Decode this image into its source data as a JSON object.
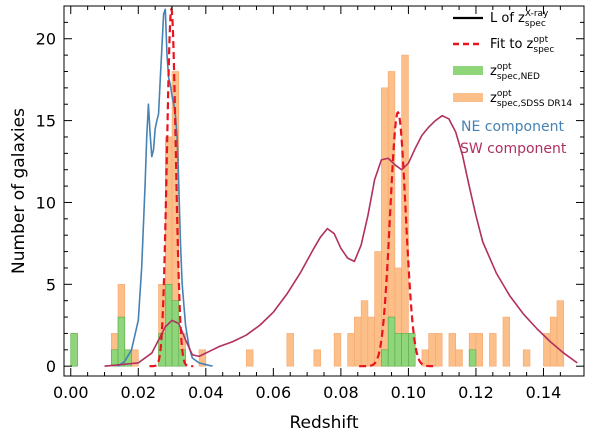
{
  "chart_data": {
    "type": "bar",
    "title": "",
    "xlabel": "Redshift",
    "ylabel": "Number of galaxies",
    "xlim": [
      -0.002,
      0.152
    ],
    "ylim": [
      -0.6,
      22
    ],
    "bin_width": 0.002,
    "x_ticks": [
      0.0,
      0.02,
      0.04,
      0.06,
      0.08,
      0.1,
      0.12,
      0.14
    ],
    "x_tick_labels": [
      "0.00",
      "0.02",
      "0.04",
      "0.06",
      "0.08",
      "0.10",
      "0.12",
      "0.14"
    ],
    "y_ticks": [
      0,
      5,
      10,
      15,
      20
    ],
    "y_tick_labels": [
      "0",
      "5",
      "10",
      "15",
      "20"
    ],
    "series": [
      {
        "name": "z spec,SDSS DR14 (opt)",
        "kind": "histogram",
        "color": "#fdbf8a",
        "edge_color": "#f4a66a",
        "bin_left": [
          0.0,
          0.012,
          0.014,
          0.018,
          0.026,
          0.028,
          0.03,
          0.032,
          0.038,
          0.052,
          0.064,
          0.072,
          0.078,
          0.082,
          0.084,
          0.086,
          0.088,
          0.09,
          0.092,
          0.094,
          0.096,
          0.098,
          0.1,
          0.104,
          0.106,
          0.108,
          0.112,
          0.114,
          0.118,
          0.12,
          0.124,
          0.128,
          0.134,
          0.14,
          0.142,
          0.144
        ],
        "counts": [
          2,
          2,
          5,
          1,
          5,
          14,
          18,
          2,
          1,
          1,
          2,
          1,
          2,
          2,
          3,
          4,
          3,
          7,
          17,
          18,
          6,
          19,
          1,
          1,
          2,
          2,
          2,
          1,
          2,
          2,
          2,
          3,
          1,
          2,
          3,
          4
        ]
      },
      {
        "name": "z spec,NED (opt)",
        "kind": "histogram",
        "color": "#8fd67a",
        "edge_color": "#5aa84a",
        "bin_left": [
          0.0,
          0.012,
          0.014,
          0.016,
          0.026,
          0.028,
          0.03,
          0.032,
          0.092,
          0.094,
          0.096,
          0.098,
          0.1,
          0.118
        ],
        "counts": [
          2,
          1,
          3,
          1,
          2,
          5,
          4,
          1,
          1,
          3,
          2,
          2,
          2,
          1
        ]
      },
      {
        "name": "L of z spec X-ray",
        "kind": "curve",
        "component": "NE component",
        "color": "#4682b4",
        "x": [
          0.014,
          0.016,
          0.018,
          0.02,
          0.021,
          0.022,
          0.0225,
          0.023,
          0.0235,
          0.024,
          0.0245,
          0.025,
          0.0255,
          0.026,
          0.0265,
          0.027,
          0.0275,
          0.028,
          0.0285,
          0.029,
          0.0295,
          0.03,
          0.0305,
          0.031,
          0.0315,
          0.032,
          0.0325,
          0.033,
          0.034,
          0.035,
          0.036,
          0.038,
          0.04,
          0.042
        ],
        "y": [
          0,
          0.3,
          1.0,
          2.8,
          6.0,
          11.0,
          14.0,
          16.0,
          14.2,
          12.8,
          13.2,
          14.5,
          15.0,
          15.4,
          17.5,
          19.5,
          21.5,
          21.8,
          19.0,
          17.6,
          17.2,
          16.5,
          16.0,
          15.3,
          14.0,
          11.0,
          7.5,
          5.0,
          2.5,
          1.2,
          0.5,
          0.2,
          0.1,
          0
        ]
      },
      {
        "name": "L of z spec X-ray",
        "kind": "curve",
        "component": "SW component",
        "color": "#b03060",
        "x": [
          0.01,
          0.02,
          0.024,
          0.026,
          0.028,
          0.03,
          0.032,
          0.034,
          0.036,
          0.038,
          0.042,
          0.044,
          0.048,
          0.052,
          0.056,
          0.06,
          0.064,
          0.068,
          0.072,
          0.074,
          0.076,
          0.078,
          0.08,
          0.082,
          0.084,
          0.086,
          0.088,
          0.09,
          0.092,
          0.094,
          0.096,
          0.098,
          0.1,
          0.102,
          0.104,
          0.106,
          0.108,
          0.11,
          0.112,
          0.114,
          0.116,
          0.118,
          0.12,
          0.122,
          0.126,
          0.13,
          0.134,
          0.138,
          0.142,
          0.146,
          0.15
        ],
        "y": [
          0,
          0.2,
          0.8,
          1.6,
          2.4,
          2.8,
          2.6,
          1.6,
          0.7,
          0.6,
          1.0,
          1.2,
          1.5,
          1.9,
          2.5,
          3.3,
          4.4,
          5.7,
          7.2,
          7.9,
          8.4,
          8.1,
          7.2,
          6.6,
          6.4,
          7.4,
          9.2,
          11.4,
          12.6,
          12.7,
          12.3,
          12.0,
          12.4,
          13.3,
          14.1,
          14.6,
          15.0,
          15.3,
          15.1,
          14.3,
          12.9,
          11.0,
          9.2,
          7.6,
          5.7,
          4.3,
          3.2,
          2.3,
          1.5,
          0.8,
          0.2
        ]
      },
      {
        "name": "Fit to z spec (opt)",
        "kind": "gaussian",
        "color": "#e8141e",
        "components": [
          {
            "mu": 0.0298,
            "sigma": 0.0013,
            "amplitude": 21.8
          },
          {
            "mu": 0.0969,
            "sigma": 0.0023,
            "amplitude": 15.5
          }
        ]
      }
    ],
    "legend": {
      "placement": "top-right",
      "entries": [
        {
          "main": "L of z",
          "sub": "spec",
          "sup": "X-ray",
          "style": "solid",
          "color": "#000000"
        },
        {
          "main": "Fit to z",
          "sub": "spec",
          "sup": "opt",
          "style": "dashed",
          "color": "#e8141e"
        },
        {
          "main": "z",
          "sub": "spec,NED",
          "sup": "opt",
          "style": "patch",
          "color": "#8fd67a"
        },
        {
          "main": "z",
          "sub": "spec,SDSS DR14",
          "sup": "opt",
          "style": "patch",
          "color": "#fdbf8a"
        }
      ]
    },
    "annotations": [
      {
        "text": "NE component",
        "color": "#4682b4"
      },
      {
        "text": "SW component",
        "color": "#b03060"
      }
    ],
    "grid": false
  }
}
